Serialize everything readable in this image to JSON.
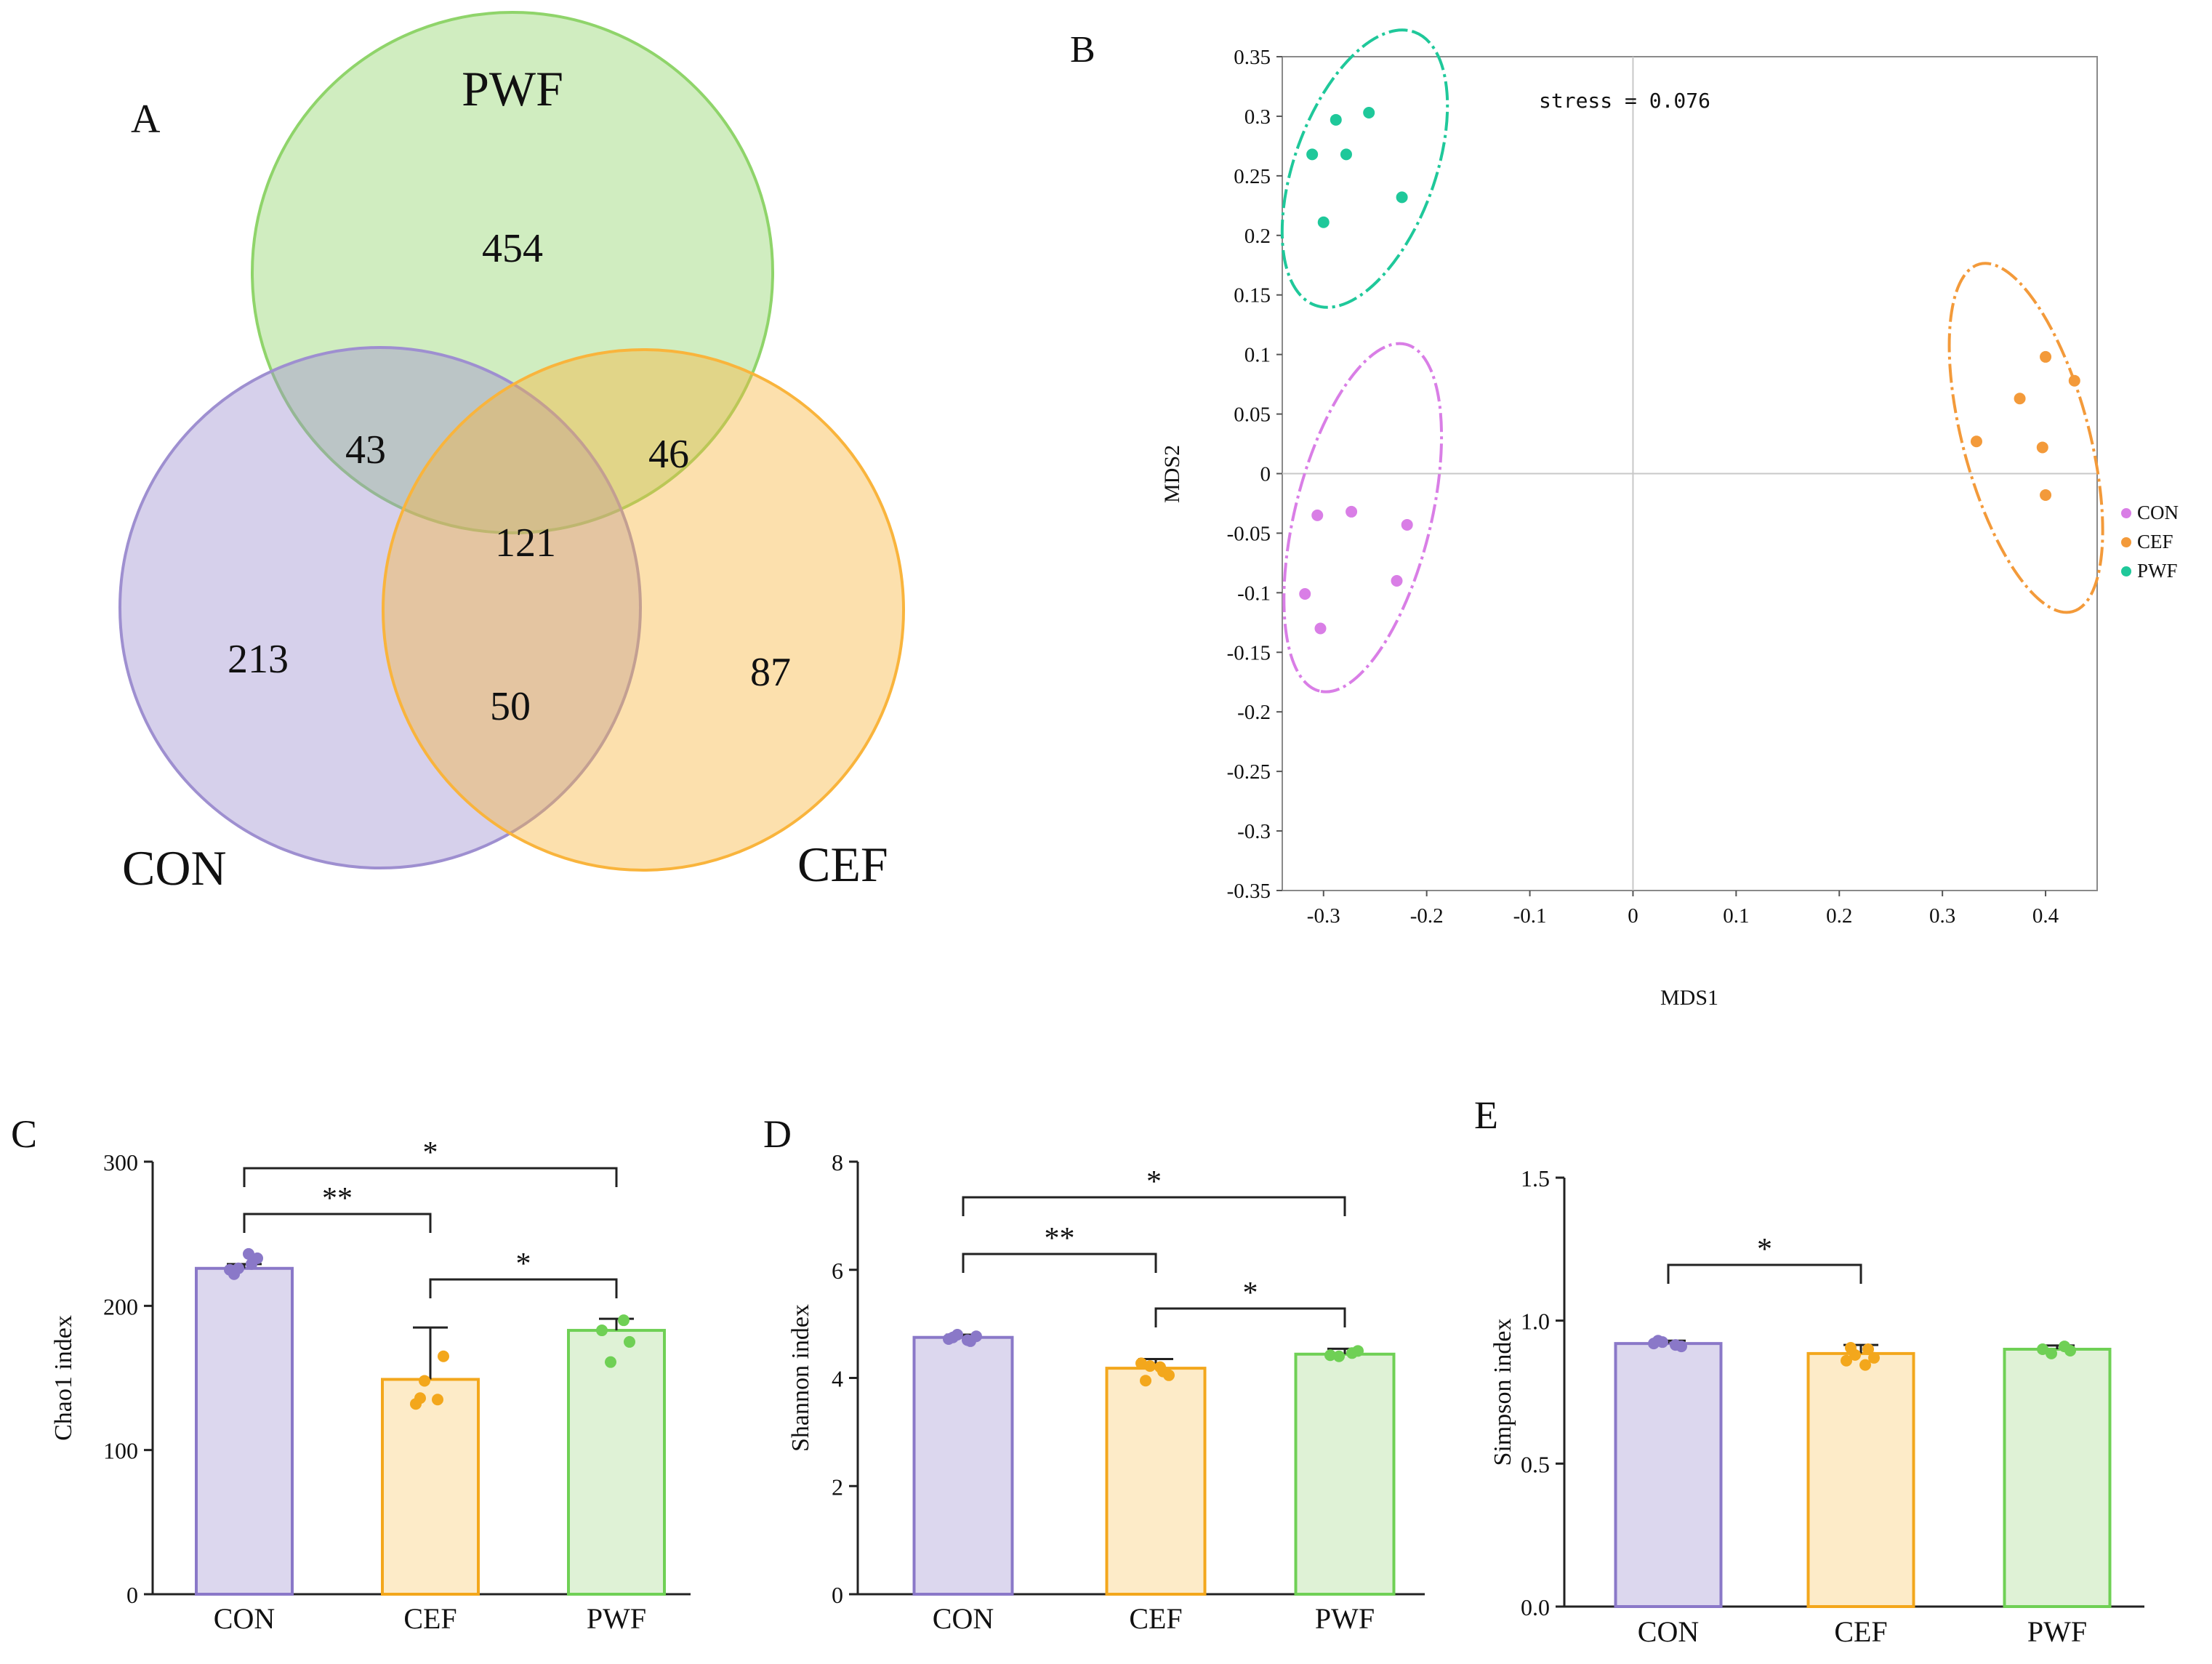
{
  "chart_data": [
    {
      "panel": "A",
      "type": "venn",
      "sets": [
        {
          "name": "PWF",
          "color": "#8fd46a"
        },
        {
          "name": "CON",
          "color": "#9e8fd0"
        },
        {
          "name": "CEF",
          "color": "#f9b43c"
        }
      ],
      "regions": [
        {
          "sets": [
            "PWF"
          ],
          "value": "454"
        },
        {
          "sets": [
            "CON",
            "PWF"
          ],
          "value": "43"
        },
        {
          "sets": [
            "PWF",
            "CEF"
          ],
          "value": "46"
        },
        {
          "sets": [
            "CON",
            "PWF",
            "CEF"
          ],
          "value": "121"
        },
        {
          "sets": [
            "CON"
          ],
          "value": "213"
        },
        {
          "sets": [
            "CON",
            "CEF"
          ],
          "value": "50"
        },
        {
          "sets": [
            "CEF"
          ],
          "value": "87"
        }
      ]
    },
    {
      "panel": "B",
      "type": "scatter",
      "title": "",
      "xlabel": "MDS1",
      "ylabel": "MDS2",
      "xlim": [
        -0.34,
        0.45
      ],
      "ylim": [
        -0.35,
        0.35
      ],
      "xticks": [
        -0.3,
        -0.2,
        -0.1,
        0,
        0.1,
        0.2,
        0.3,
        0.4
      ],
      "xtick_labels": [
        "-0.3",
        "-0.2",
        "-0.1",
        "0",
        "0.1",
        "0.2",
        "0.3",
        "0.4"
      ],
      "yticks": [
        0.35,
        0.3,
        0.25,
        0.2,
        0.15,
        0.1,
        0.05,
        0,
        -0.05,
        -0.1,
        -0.15,
        -0.2,
        -0.25,
        -0.3,
        -0.35
      ],
      "ytick_labels": [
        "0.35",
        "0.3",
        "0.25",
        "0.2",
        "0.15",
        "0.1",
        "0.05",
        "0",
        "-0.05",
        "-0.1",
        "-0.15",
        "-0.2",
        "-0.25",
        "-0.3",
        "-0.35"
      ],
      "annotation": "stress = 0.076",
      "legend_position": "right",
      "series": [
        {
          "name": "CON",
          "color": "#d97ee6",
          "points": [
            [
              -0.306,
              -0.035
            ],
            [
              -0.273,
              -0.032
            ],
            [
              -0.219,
              -0.043
            ],
            [
              -0.229,
              -0.09
            ],
            [
              -0.318,
              -0.101
            ],
            [
              -0.303,
              -0.13
            ]
          ],
          "ellipse": {
            "center": [
              -0.262,
              -0.037
            ],
            "semi_axes": [
              0.15,
              0.057
            ],
            "angle_deg": 104
          }
        },
        {
          "name": "CEF",
          "color": "#f39a3a",
          "points": [
            [
              0.4,
              0.098
            ],
            [
              0.428,
              0.078
            ],
            [
              0.375,
              0.063
            ],
            [
              0.333,
              0.027
            ],
            [
              0.397,
              0.022
            ],
            [
              0.4,
              -0.018
            ]
          ],
          "ellipse": {
            "center": [
              0.381,
              0.03
            ],
            "semi_axes": [
              0.151,
              0.053
            ],
            "angle_deg": 75
          }
        },
        {
          "name": "PWF",
          "color": "#1fc89a",
          "points": [
            [
              -0.288,
              0.297
            ],
            [
              -0.256,
              0.303
            ],
            [
              -0.311,
              0.268
            ],
            [
              -0.278,
              0.268
            ],
            [
              -0.224,
              0.232
            ],
            [
              -0.3,
              0.211
            ]
          ],
          "ellipse": {
            "center": [
              -0.26,
              0.256
            ],
            "semi_axes": [
              0.122,
              0.059
            ],
            "angle_deg": -70
          }
        }
      ]
    },
    {
      "panel": "C",
      "type": "bar",
      "ylabel": "Chao1 index",
      "ylim": [
        0,
        300
      ],
      "yticks": [
        0,
        100,
        200,
        300
      ],
      "ytick_labels": [
        "0",
        "100",
        "200",
        "300"
      ],
      "categories": [
        "CON",
        "CEF",
        "PWF"
      ],
      "colors": [
        {
          "fill": "#dcd7ee",
          "stroke": "#8a78c8"
        },
        {
          "fill": "#fdebc8",
          "stroke": "#f3a71c"
        },
        {
          "fill": "#dff2d6",
          "stroke": "#6fd055"
        }
      ],
      "values": [
        226,
        149,
        183
      ],
      "errors": [
        3,
        36,
        8
      ],
      "points": [
        [
          225,
          229,
          226,
          233,
          222,
          236
        ],
        [
          132,
          135,
          148,
          165,
          136
        ],
        [
          183,
          190,
          161,
          175
        ]
      ],
      "comparisons": [
        {
          "from": 0,
          "to": 1,
          "label": "**"
        },
        {
          "from": 1,
          "to": 2,
          "label": "*"
        },
        {
          "from": 0,
          "to": 2,
          "label": "*"
        }
      ]
    },
    {
      "panel": "D",
      "type": "bar",
      "ylabel": "Shannon index",
      "ylim": [
        0,
        8
      ],
      "yticks": [
        0,
        2,
        4,
        6,
        8
      ],
      "ytick_labels": [
        "0",
        "2",
        "4",
        "6",
        "8"
      ],
      "categories": [
        "CON",
        "CEF",
        "PWF"
      ],
      "colors": [
        {
          "fill": "#dcd7ee",
          "stroke": "#8a78c8"
        },
        {
          "fill": "#fdebc8",
          "stroke": "#f3a71c"
        },
        {
          "fill": "#dff2d6",
          "stroke": "#6fd055"
        }
      ],
      "values": [
        4.75,
        4.18,
        4.44
      ],
      "errors": [
        0.05,
        0.17,
        0.1
      ],
      "points": [
        [
          4.72,
          4.68,
          4.8,
          4.77,
          4.75,
          4.7
        ],
        [
          4.27,
          4.12,
          4.22,
          4.05,
          3.95,
          4.2
        ],
        [
          4.42,
          4.46,
          4.4,
          4.5
        ]
      ],
      "comparisons": [
        {
          "from": 0,
          "to": 1,
          "label": "**"
        },
        {
          "from": 1,
          "to": 2,
          "label": "*"
        },
        {
          "from": 0,
          "to": 2,
          "label": "*"
        }
      ]
    },
    {
      "panel": "E",
      "type": "bar",
      "ylabel": "Simpson index",
      "ylim": [
        0,
        1.5
      ],
      "yticks": [
        0,
        0.5,
        1,
        1.5
      ],
      "ytick_labels": [
        "0.0",
        "0.5",
        "1.0",
        "1.5"
      ],
      "categories": [
        "CON",
        "CEF",
        "PWF"
      ],
      "colors": [
        {
          "fill": "#dcd7ee",
          "stroke": "#8a78c8"
        },
        {
          "fill": "#fdebc8",
          "stroke": "#f3a71c"
        },
        {
          "fill": "#dff2d6",
          "stroke": "#6fd055"
        }
      ],
      "values": [
        0.92,
        0.885,
        0.9
      ],
      "errors": [
        0.01,
        0.03,
        0.013
      ],
      "points": [
        [
          0.92,
          0.915,
          0.925,
          0.91,
          0.93
        ],
        [
          0.86,
          0.9,
          0.88,
          0.87,
          0.905,
          0.845
        ],
        [
          0.9,
          0.91,
          0.885,
          0.895
        ]
      ],
      "comparisons": [
        {
          "from": 0,
          "to": 1,
          "label": "*"
        }
      ]
    }
  ]
}
